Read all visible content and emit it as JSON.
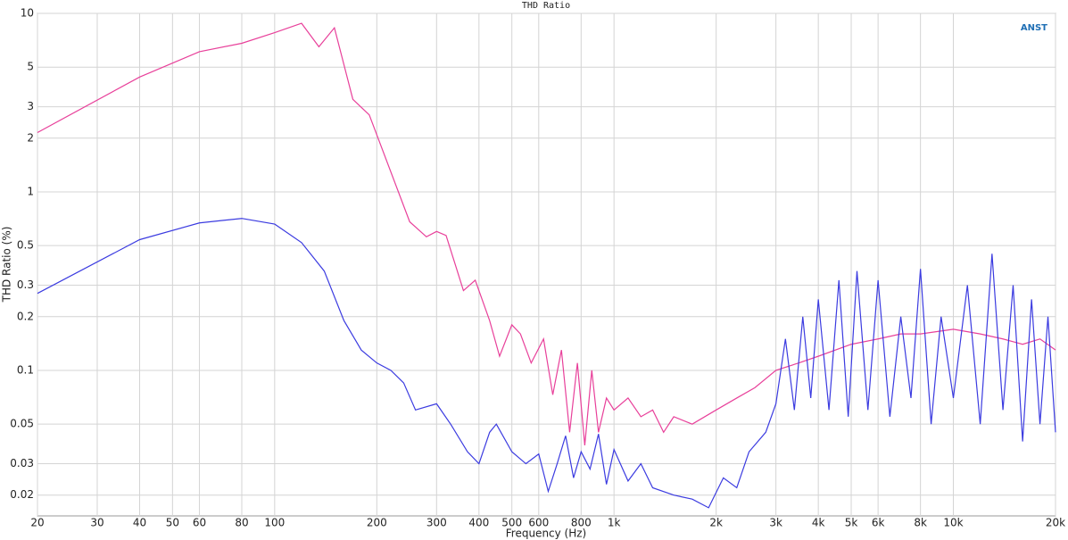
{
  "chart_data": {
    "type": "line",
    "title": "THD Ratio",
    "annotation": "ANST",
    "x_label": "Frequency (Hz)",
    "y_label": "THD Ratio (%)",
    "xscale": "log",
    "yscale": "log",
    "grid": true,
    "xlim": [
      20,
      20000
    ],
    "ylim": [
      0.0153,
      10
    ],
    "xticks": [
      20,
      30,
      40,
      50,
      60,
      80,
      100,
      200,
      300,
      400,
      500,
      600,
      800,
      {
        "value": 1000,
        "label": "1k"
      },
      {
        "value": 2000,
        "label": "2k"
      },
      {
        "value": 3000,
        "label": "3k"
      },
      {
        "value": 4000,
        "label": "4k"
      },
      {
        "value": 5000,
        "label": "5k"
      },
      {
        "value": 6000,
        "label": "6k"
      },
      {
        "value": 8000,
        "label": "8k"
      },
      {
        "value": 10000,
        "label": "10k"
      },
      {
        "value": 20000,
        "label": "20k"
      }
    ],
    "yticks": [
      10,
      5,
      3,
      2,
      1,
      0.5,
      0.3,
      0.2,
      0.1,
      0.05,
      0.03,
      0.02
    ],
    "series": [
      {
        "color": "#e8409a",
        "x": [
          20,
          40,
          60,
          80,
          100,
          120,
          135,
          150,
          170,
          190,
          250,
          280,
          300,
          320,
          360,
          390,
          430,
          460,
          500,
          530,
          570,
          620,
          660,
          700,
          740,
          780,
          820,
          860,
          900,
          950,
          1000,
          1100,
          1200,
          1300,
          1400,
          1500,
          1700,
          2000,
          2300,
          2600,
          3000,
          3500,
          4000,
          5000,
          6000,
          7000,
          8000,
          10000,
          12000,
          14000,
          16000,
          18000,
          20000
        ],
        "values": [
          2.15,
          4.4,
          6.1,
          6.8,
          7.8,
          8.8,
          6.5,
          8.3,
          3.3,
          2.7,
          0.68,
          0.56,
          0.6,
          0.57,
          0.28,
          0.32,
          0.19,
          0.12,
          0.18,
          0.16,
          0.11,
          0.15,
          0.073,
          0.13,
          0.045,
          0.11,
          0.038,
          0.1,
          0.045,
          0.07,
          0.06,
          0.07,
          0.055,
          0.06,
          0.045,
          0.055,
          0.05,
          0.06,
          0.07,
          0.08,
          0.1,
          0.11,
          0.12,
          0.14,
          0.15,
          0.16,
          0.16,
          0.17,
          0.16,
          0.15,
          0.14,
          0.15,
          0.13
        ]
      },
      {
        "color": "#3b3be0",
        "x": [
          20,
          40,
          60,
          80,
          100,
          120,
          140,
          160,
          180,
          200,
          220,
          240,
          260,
          300,
          330,
          370,
          400,
          430,
          450,
          500,
          550,
          600,
          640,
          680,
          720,
          760,
          800,
          850,
          900,
          950,
          1000,
          1100,
          1200,
          1300,
          1500,
          1700,
          1900,
          2100,
          2300,
          2500,
          2800,
          3000,
          3200,
          3400,
          3600,
          3800,
          4000,
          4300,
          4600,
          4900,
          5200,
          5600,
          6000,
          6500,
          7000,
          7500,
          8000,
          8600,
          9200,
          10000,
          11000,
          12000,
          13000,
          14000,
          15000,
          16000,
          17000,
          18000,
          19000,
          20000
        ],
        "values": [
          0.27,
          0.54,
          0.67,
          0.71,
          0.66,
          0.52,
          0.36,
          0.19,
          0.13,
          0.11,
          0.1,
          0.085,
          0.06,
          0.065,
          0.05,
          0.035,
          0.03,
          0.045,
          0.05,
          0.035,
          0.03,
          0.034,
          0.021,
          0.03,
          0.043,
          0.025,
          0.035,
          0.028,
          0.044,
          0.023,
          0.036,
          0.024,
          0.03,
          0.022,
          0.02,
          0.019,
          0.017,
          0.025,
          0.022,
          0.035,
          0.045,
          0.065,
          0.15,
          0.06,
          0.2,
          0.07,
          0.25,
          0.06,
          0.32,
          0.055,
          0.36,
          0.06,
          0.32,
          0.055,
          0.2,
          0.07,
          0.37,
          0.05,
          0.2,
          0.07,
          0.3,
          0.05,
          0.45,
          0.06,
          0.3,
          0.04,
          0.25,
          0.05,
          0.2,
          0.045
        ]
      }
    ]
  }
}
